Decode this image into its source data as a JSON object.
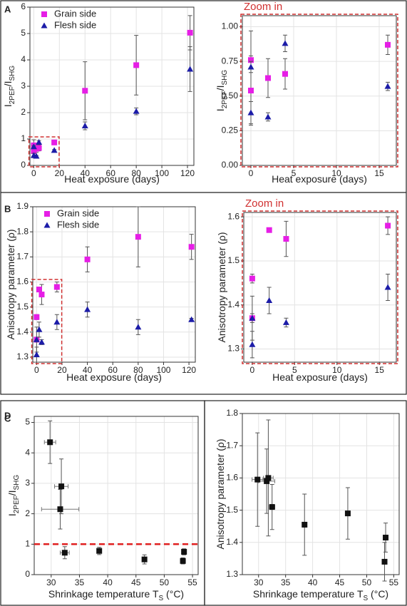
{
  "chart_data": [
    {
      "type": "scatter",
      "panel_label": "A",
      "x_label": [
        "Heat exposure (days)"
      ],
      "y_label": [
        "I",
        "2PEF",
        "/I",
        "SHG"
      ],
      "xlim": [
        -3,
        125
      ],
      "ylim": [
        0,
        6
      ],
      "xticks": [
        0,
        20,
        40,
        60,
        80,
        100,
        120
      ],
      "yticks": [
        0,
        1,
        2,
        3,
        4,
        5,
        6
      ],
      "grid": true,
      "legend": "upper left",
      "series": [
        {
          "name": "Grain side",
          "color": "#e61ee6",
          "marker": "square",
          "x": [
            0,
            0,
            2,
            4,
            16,
            40,
            80,
            122
          ],
          "values": [
            0.76,
            0.54,
            0.63,
            0.66,
            0.87,
            2.83,
            3.8,
            5.03
          ],
          "errors": [
            0.21,
            0.25,
            0.14,
            0.11,
            0.07,
            1.1,
            1.13,
            0.65
          ]
        },
        {
          "name": "Flesh side",
          "color": "#1c1ca8",
          "marker": "triangle",
          "x": [
            0,
            0,
            2,
            4,
            16,
            40,
            80,
            122
          ],
          "values": [
            0.71,
            0.38,
            0.35,
            0.88,
            0.57,
            1.5,
            2.05,
            3.65
          ],
          "errors": [
            0.04,
            0.08,
            0.03,
            0.06,
            0.03,
            0.15,
            0.13,
            0.85
          ]
        }
      ]
    },
    {
      "type": "scatter",
      "annotation": "Zoom in",
      "x_label": [
        "Heat exposure (days)"
      ],
      "y_label": [
        "I",
        "2PEF",
        "/I",
        "SHG"
      ],
      "xlim": [
        -1,
        17
      ],
      "ylim": [
        0,
        1.08
      ],
      "xticks": [
        0,
        5,
        10,
        15
      ],
      "yticks": [
        {
          "value": 0,
          "label": "0.00"
        },
        {
          "value": 0.25,
          "label": "0.25"
        },
        {
          "value": 0.5,
          "label": "0.50"
        },
        {
          "value": 0.75,
          "label": "0.75"
        },
        {
          "value": 1,
          "label": "1.00"
        }
      ],
      "grid": true,
      "series": [
        {
          "color": "#e61ee6",
          "marker": "square",
          "x": [
            0,
            0,
            2,
            4,
            16
          ],
          "values": [
            0.76,
            0.54,
            0.63,
            0.66,
            0.87
          ],
          "errors": [
            0.21,
            0.25,
            0.14,
            0.11,
            0.07
          ]
        },
        {
          "color": "#1c1ca8",
          "marker": "triangle",
          "x": [
            0,
            0,
            2,
            4,
            16
          ],
          "values": [
            0.71,
            0.38,
            0.35,
            0.88,
            0.57
          ],
          "errors": [
            0.04,
            0.08,
            0.03,
            0.06,
            0.03
          ]
        }
      ]
    },
    {
      "type": "scatter",
      "panel_label": "B",
      "x_label": [
        "Heat exposure (days)"
      ],
      "y_label": [
        "Anisotropy parameter (ρ)"
      ],
      "xlim": [
        -3,
        125
      ],
      "ylim": [
        1.28,
        1.9
      ],
      "xticks": [
        0,
        20,
        40,
        60,
        80,
        100,
        120
      ],
      "yticks": [
        1.3,
        1.4,
        1.5,
        1.6,
        1.7,
        1.8,
        1.9
      ],
      "grid": true,
      "legend": "upper left",
      "series": [
        {
          "name": "Grain side",
          "color": "#e61ee6",
          "marker": "square",
          "x": [
            0,
            0,
            2,
            4,
            16,
            40,
            80,
            122
          ],
          "values": [
            1.46,
            1.37,
            1.57,
            1.55,
            1.58,
            1.69,
            1.78,
            1.74
          ],
          "errors": [
            0.01,
            0.01,
            0,
            0.04,
            0.02,
            0.05,
            0.12,
            0.05
          ]
        },
        {
          "name": "Flesh side",
          "color": "#1c1ca8",
          "marker": "triangle",
          "x": [
            0,
            0,
            2,
            4,
            16,
            40,
            80,
            122
          ],
          "values": [
            1.37,
            1.31,
            1.41,
            1.36,
            1.44,
            1.49,
            1.42,
            1.45
          ],
          "errors": [
            0.05,
            0.03,
            0.03,
            0.01,
            0.03,
            0.03,
            0.03,
            0.005
          ]
        }
      ]
    },
    {
      "type": "scatter",
      "annotation": "Zoom in",
      "x_label": [
        "Heat exposure (days)"
      ],
      "y_label": [
        "Anisotropy parameter (ρ)"
      ],
      "xlim": [
        -1,
        17
      ],
      "ylim": [
        1.27,
        1.61
      ],
      "xticks": [
        0,
        5,
        10,
        15
      ],
      "yticks": [
        1.3,
        1.4,
        1.5,
        1.6
      ],
      "grid": true,
      "series": [
        {
          "color": "#e61ee6",
          "marker": "square",
          "x": [
            0,
            0,
            2,
            4,
            16
          ],
          "values": [
            1.46,
            1.37,
            1.57,
            1.55,
            1.58
          ],
          "errors": [
            0.01,
            0.01,
            0,
            0.04,
            0.02
          ]
        },
        {
          "color": "#1c1ca8",
          "marker": "triangle",
          "x": [
            0,
            0,
            2,
            4,
            16
          ],
          "values": [
            1.37,
            1.31,
            1.41,
            1.36,
            1.44
          ],
          "errors": [
            0.05,
            0.03,
            0.03,
            0.01,
            0.03
          ]
        }
      ]
    },
    {
      "type": "scatter",
      "panel_label": "C",
      "x_label": [
        "Shrinkage temperature T",
        "S",
        " (°C)"
      ],
      "y_label": [
        "I",
        "2PEF",
        "/I",
        "SHG"
      ],
      "xlim": [
        27,
        56
      ],
      "ylim": [
        0,
        5.2
      ],
      "xticks": [
        30,
        35,
        40,
        45,
        50,
        55
      ],
      "yticks": [
        0,
        1,
        2,
        3,
        4,
        5
      ],
      "grid": true,
      "hline": 1,
      "hline_color": "#e02020",
      "series": [
        {
          "color": "#111111",
          "marker": "square",
          "x": [
            29.8,
            31.8,
            31.6,
            32.4,
            38.5,
            46.5,
            53.5,
            53.3
          ],
          "values": [
            4.35,
            2.9,
            2.15,
            0.72,
            0.78,
            0.5,
            0.75,
            0.45
          ],
          "errors": [
            0.7,
            0.9,
            0.65,
            0.2,
            0.12,
            0.15,
            0.1,
            0.1
          ],
          "x_errors": [
            1,
            1.2,
            3.3,
            0.8,
            0.3,
            0.3,
            0.3,
            0.3
          ]
        }
      ]
    },
    {
      "type": "scatter",
      "panel_label": "D",
      "x_label": [
        "Shrinkage temperature T",
        "S",
        " (°C)"
      ],
      "y_label": [
        "Anisotropy parameter (ρ)"
      ],
      "xlim": [
        27,
        56
      ],
      "ylim": [
        1.3,
        1.8
      ],
      "xticks": [
        30,
        35,
        40,
        45,
        50,
        55
      ],
      "yticks": [
        1.3,
        1.4,
        1.5,
        1.6,
        1.7,
        1.8
      ],
      "grid": true,
      "series": [
        {
          "color": "#111111",
          "marker": "square",
          "x": [
            29.8,
            31.5,
            31.8,
            32.5,
            38.5,
            46.5,
            53.5,
            53.3
          ],
          "values": [
            1.595,
            1.59,
            1.6,
            1.51,
            1.455,
            1.49,
            1.415,
            1.34
          ],
          "errors": [
            0.145,
            0.1,
            0.18,
            0.07,
            0.095,
            0.08,
            0.045,
            0.06
          ],
          "x_errors": [
            1,
            1.5,
            0.9,
            0.5,
            0.3,
            0.3,
            0.3,
            0.3
          ]
        }
      ]
    }
  ]
}
